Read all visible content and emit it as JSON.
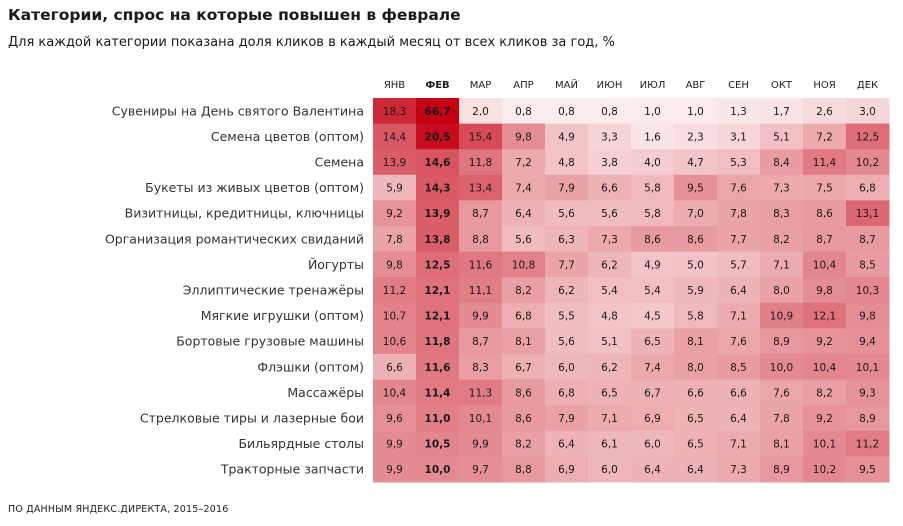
{
  "title": "Категории, спрос на которые повышен в феврале",
  "subtitle": "Для каждой категории показана доля кликов в каждый месяц от всех кликов за год, %",
  "source": "ПО ДАННЫМ ЯНДЕКС.ДИРЕКТА, 2015–2016",
  "colors": {
    "low": "#fdf3f3",
    "high": "#c40012",
    "text": "#222222"
  },
  "chart_data": {
    "type": "heatmap",
    "title": "Категории, спрос на которые повышен в феврале",
    "subtitle": "Для каждой категории показана доля кликов в каждый месяц от всех кликов за год, %",
    "columns": [
      "ЯНВ",
      "ФЕВ",
      "МАР",
      "АПР",
      "МАЙ",
      "ИЮН",
      "ИЮЛ",
      "АВГ",
      "СЕН",
      "ОКТ",
      "НОЯ",
      "ДЕК"
    ],
    "highlight_column": 1,
    "rows": [
      {
        "label": "Сувениры на День святого Валентина",
        "values": [
          "18,3",
          "66,7",
          "2,0",
          "0,8",
          "0,8",
          "0,8",
          "1,0",
          "1,0",
          "1,3",
          "1,7",
          "2,6",
          "3,0"
        ]
      },
      {
        "label": "Семена цветов (оптом)",
        "values": [
          "14,4",
          "20,5",
          "15,4",
          "9,8",
          "4,9",
          "3,3",
          "1,6",
          "2,3",
          "3,1",
          "5,1",
          "7,2",
          "12,5"
        ]
      },
      {
        "label": "Семена",
        "values": [
          "13,9",
          "14,6",
          "11,8",
          "7,2",
          "4,8",
          "3,8",
          "4,0",
          "4,7",
          "5,3",
          "8,4",
          "11,4",
          "10,2"
        ]
      },
      {
        "label": "Букеты из живых цветов (оптом)",
        "values": [
          "5,9",
          "14,3",
          "13,4",
          "7,4",
          "7,9",
          "6,6",
          "5,8",
          "9,5",
          "7,6",
          "7,3",
          "7,5",
          "6,8"
        ]
      },
      {
        "label": "Визитницы, кредитницы, ключницы",
        "values": [
          "9,2",
          "13,9",
          "8,7",
          "6,4",
          "5,6",
          "5,6",
          "5,8",
          "7,0",
          "7,8",
          "8,3",
          "8,6",
          "13,1"
        ]
      },
      {
        "label": "Организация романтических свиданий",
        "values": [
          "7,8",
          "13,8",
          "8,8",
          "5,6",
          "6,3",
          "7,3",
          "8,6",
          "8,6",
          "7,7",
          "8,2",
          "8,7",
          "8,7"
        ]
      },
      {
        "label": "Йогурты",
        "values": [
          "9,8",
          "12,5",
          "11,6",
          "10,8",
          "7,7",
          "6,2",
          "4,9",
          "5,0",
          "5,7",
          "7,1",
          "10,4",
          "8,5"
        ]
      },
      {
        "label": "Эллиптические тренажёры",
        "values": [
          "11,2",
          "12,1",
          "11,1",
          "8,2",
          "6,2",
          "5,4",
          "5,4",
          "5,9",
          "6,4",
          "8,0",
          "9,8",
          "10,3"
        ]
      },
      {
        "label": "Мягкие игрушки (оптом)",
        "values": [
          "10,7",
          "12,1",
          "9,9",
          "6,8",
          "5,5",
          "4,8",
          "4,5",
          "5,8",
          "7,1",
          "10,9",
          "12,1",
          "9,8"
        ]
      },
      {
        "label": "Бортовые грузовые машины",
        "values": [
          "10,6",
          "11,8",
          "8,7",
          "8,1",
          "5,6",
          "5,1",
          "6,5",
          "8,1",
          "7,6",
          "8,9",
          "9,2",
          "9,4"
        ]
      },
      {
        "label": "Флэшки (оптом)",
        "values": [
          "6,6",
          "11,6",
          "8,3",
          "6,7",
          "6,0",
          "6,2",
          "7,4",
          "8,0",
          "8,5",
          "10,0",
          "10,4",
          "10,1"
        ]
      },
      {
        "label": "Массажёры",
        "values": [
          "10,4",
          "11,4",
          "11,3",
          "8,6",
          "6,8",
          "6,5",
          "6,7",
          "6,6",
          "6,6",
          "7,6",
          "8,2",
          "9,3"
        ]
      },
      {
        "label": "Стрелковые тиры и лазерные бои",
        "values": [
          "9,6",
          "11,0",
          "10,1",
          "8,6",
          "7,9",
          "7,1",
          "6,9",
          "6,5",
          "6,4",
          "7,8",
          "9,2",
          "8,9"
        ]
      },
      {
        "label": "Бильярдные столы",
        "values": [
          "9,9",
          "10,5",
          "9,9",
          "8,2",
          "6,4",
          "6,1",
          "6,0",
          "6,5",
          "7,1",
          "8,1",
          "10,1",
          "11,2"
        ]
      },
      {
        "label": "Тракторные запчасти",
        "values": [
          "9,9",
          "10,0",
          "9,7",
          "8,8",
          "6,9",
          "6,0",
          "6,4",
          "6,4",
          "7,3",
          "8,9",
          "10,2",
          "9,5"
        ]
      }
    ]
  }
}
